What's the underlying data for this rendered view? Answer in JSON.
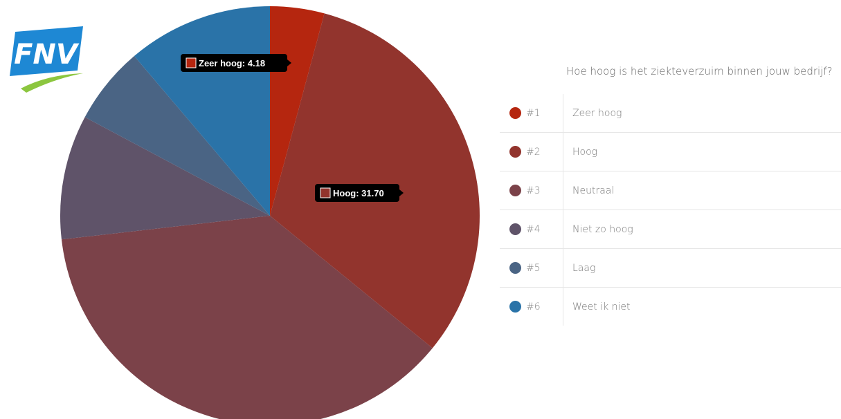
{
  "brand": {
    "logo_text": "FNV"
  },
  "legend": {
    "title": "Hoe hoog is het ziekteverzuim binnen jouw bedrijf?"
  },
  "chart_data": {
    "type": "pie",
    "title": "Hoe hoog is het ziekteverzuim binnen jouw bedrijf?",
    "slices": [
      {
        "rank": "#1",
        "label": "Zeer hoog",
        "value": 4.18,
        "color": "#b5260f"
      },
      {
        "rank": "#2",
        "label": "Hoog",
        "value": 31.7,
        "color": "#92342d"
      },
      {
        "rank": "#3",
        "label": "Neutraal",
        "value": 37.3,
        "color": "#7b4249"
      },
      {
        "rank": "#4",
        "label": "Niet zo hoog",
        "value": 9.6,
        "color": "#5f5369"
      },
      {
        "rank": "#5",
        "label": "Laag",
        "value": 6.0,
        "color": "#4a6484"
      },
      {
        "rank": "#6",
        "label": "Weet ik niet",
        "value": 11.2,
        "color": "#2a73a8"
      }
    ],
    "tooltips": [
      {
        "slice_index": 0,
        "text": "Zeer hoog: 4.18"
      },
      {
        "slice_index": 1,
        "text": "Hoog: 31.70"
      }
    ]
  }
}
